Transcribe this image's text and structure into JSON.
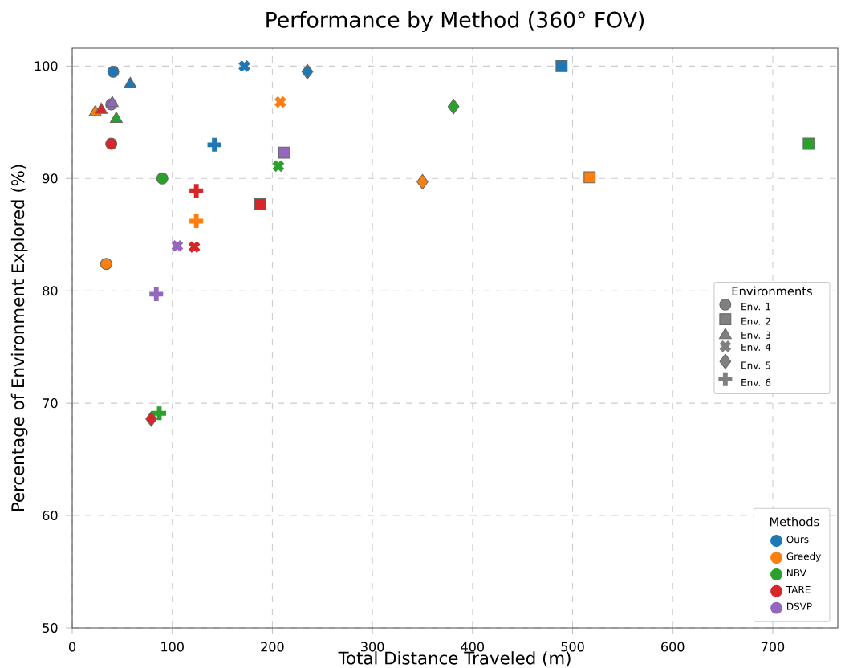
{
  "chart_data": {
    "type": "scatter",
    "title": "Performance by Method (360° FOV)",
    "xlabel": "Total Distance Traveled (m)",
    "ylabel": "Percentage of Environment Explored (%)",
    "xlim": [
      0,
      765
    ],
    "xticks": [
      0,
      100,
      200,
      300,
      400,
      500,
      600,
      700
    ],
    "ylim": [
      50,
      101.6
    ],
    "yticks": [
      50,
      60,
      70,
      80,
      90,
      100
    ],
    "grid": true,
    "legend": "bottom right",
    "legend_title": "Methods",
    "series": [
      {
        "name": "Ours",
        "color": "#1f77b4",
        "marker": "circle",
        "x": [
          41
        ],
        "values": [
          99.5
        ]
      },
      {
        "color": "#1f77b4",
        "marker": "square",
        "x": [
          489
        ],
        "values": [
          100.0
        ]
      },
      {
        "color": "#1f77b4",
        "marker": "triangle",
        "x": [
          58
        ],
        "values": [
          98.4
        ]
      },
      {
        "color": "#1f77b4",
        "marker": "cross",
        "x": [
          172
        ],
        "values": [
          100.0
        ]
      },
      {
        "color": "#1f77b4",
        "marker": "diamond",
        "x": [
          235
        ],
        "values": [
          99.5
        ]
      },
      {
        "color": "#1f77b4",
        "marker": "plus",
        "x": [
          142
        ],
        "values": [
          93.0
        ]
      },
      {
        "name": "Greedy",
        "color": "#ff7f0e",
        "marker": "circle",
        "x": [
          34
        ],
        "values": [
          82.4
        ]
      },
      {
        "color": "#ff7f0e",
        "marker": "square",
        "x": [
          517
        ],
        "values": [
          90.1
        ]
      },
      {
        "color": "#ff7f0e",
        "marker": "triangle",
        "x": [
          23
        ],
        "values": [
          95.9
        ]
      },
      {
        "color": "#ff7f0e",
        "marker": "cross",
        "x": [
          208
        ],
        "values": [
          96.8
        ]
      },
      {
        "color": "#ff7f0e",
        "marker": "diamond",
        "x": [
          350
        ],
        "values": [
          89.7
        ]
      },
      {
        "color": "#ff7f0e",
        "marker": "plus",
        "x": [
          124
        ],
        "values": [
          86.2
        ]
      },
      {
        "name": "NBV",
        "color": "#2ca02c",
        "marker": "circle",
        "x": [
          90
        ],
        "values": [
          90.0
        ]
      },
      {
        "color": "#2ca02c",
        "marker": "square",
        "x": [
          736
        ],
        "values": [
          93.1
        ]
      },
      {
        "color": "#2ca02c",
        "marker": "triangle",
        "x": [
          44
        ],
        "values": [
          95.3
        ]
      },
      {
        "color": "#2ca02c",
        "marker": "cross",
        "x": [
          206
        ],
        "values": [
          91.1
        ]
      },
      {
        "color": "#2ca02c",
        "marker": "diamond",
        "x": [
          381
        ],
        "values": [
          96.4
        ]
      },
      {
        "color": "#2ca02c",
        "marker": "plus",
        "x": [
          87
        ],
        "values": [
          69.1
        ]
      },
      {
        "name": "TARE",
        "color": "#d62728",
        "marker": "circle",
        "x": [
          39
        ],
        "values": [
          93.1
        ]
      },
      {
        "color": "#d62728",
        "marker": "square",
        "x": [
          188
        ],
        "values": [
          87.7
        ]
      },
      {
        "color": "#d62728",
        "marker": "triangle",
        "x": [
          29
        ],
        "values": [
          96.1
        ]
      },
      {
        "color": "#d62728",
        "marker": "cross",
        "x": [
          122
        ],
        "values": [
          83.9
        ]
      },
      {
        "color": "#d62728",
        "marker": "diamond",
        "x": [
          79
        ],
        "values": [
          68.6
        ]
      },
      {
        "color": "#d62728",
        "marker": "plus",
        "x": [
          124
        ],
        "values": [
          88.9
        ]
      },
      {
        "name": "DSVP",
        "color": "#9467bd",
        "marker": "circle",
        "x": [
          39
        ],
        "values": [
          96.6
        ]
      },
      {
        "color": "#9467bd",
        "marker": "square",
        "x": [
          212
        ],
        "values": [
          92.3
        ]
      },
      {
        "color": "#9467bd",
        "marker": "triangle",
        "x": [
          40
        ],
        "values": [
          96.7
        ]
      },
      {
        "color": "#9467bd",
        "marker": "cross",
        "x": [
          105
        ],
        "values": [
          84.0
        ]
      },
      {
        "color": "#9467bd",
        "marker": "plus",
        "x": [
          84
        ],
        "values": [
          79.7
        ]
      }
    ],
    "annotations": [
      "Environments",
      "Env. 1",
      "Env. 2",
      "Env. 3",
      "Env. 4",
      "Env. 5",
      "Env. 6"
    ]
  }
}
